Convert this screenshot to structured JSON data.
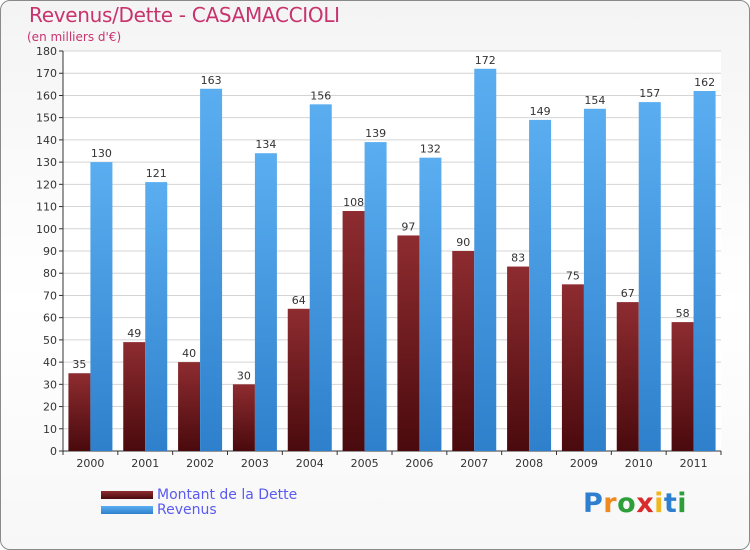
{
  "chart_data": {
    "type": "bar",
    "title": "Revenus/Dette - CASAMACCIOLI",
    "subtitle": "(en milliers d'€)",
    "categories": [
      "2000",
      "2001",
      "2002",
      "2003",
      "2004",
      "2005",
      "2006",
      "2007",
      "2008",
      "2009",
      "2010",
      "2011"
    ],
    "series": [
      {
        "name": "Montant de la Dette",
        "values": [
          35,
          49,
          40,
          30,
          64,
          108,
          97,
          90,
          83,
          75,
          67,
          58
        ],
        "color": "#7a1e22"
      },
      {
        "name": "Revenus",
        "values": [
          130,
          121,
          163,
          134,
          156,
          139,
          132,
          172,
          149,
          154,
          157,
          162
        ],
        "color": "#3f95de"
      }
    ],
    "ylim": [
      0,
      180
    ],
    "ytick_step": 10,
    "grid": true,
    "legend_position": "bottom-left",
    "data_labels": true
  },
  "logo": {
    "letters": [
      "P",
      "r",
      "o",
      "x",
      "i",
      "t",
      "i"
    ],
    "colors": [
      "#2f7fd0",
      "#f08a1e",
      "#2e9e3a",
      "#d92b2b",
      "#f0b81e",
      "#2f7fd0",
      "#2e9e3a"
    ]
  }
}
